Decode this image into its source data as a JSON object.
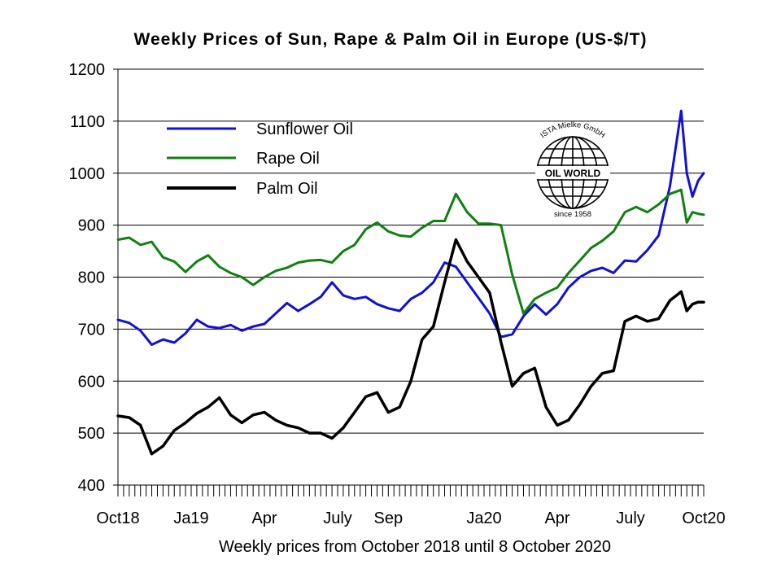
{
  "chart_data": {
    "type": "line",
    "title": "Weekly Prices of Sun, Rape & Palm Oil in Europe (US-$/T)",
    "xlabel": "Weekly prices from October 2018 until 8 October 2020",
    "ylabel": "",
    "ylim": [
      400,
      1200
    ],
    "yticks": [
      400,
      500,
      600,
      700,
      800,
      900,
      1000,
      1100,
      1200
    ],
    "x_tick_labels": [
      {
        "label": "Oct18",
        "week": 0
      },
      {
        "label": "Ja19",
        "week": 13
      },
      {
        "label": "Apr",
        "week": 26
      },
      {
        "label": "July",
        "week": 39
      },
      {
        "label": "Sep",
        "week": 48
      },
      {
        "label": "Ja20",
        "week": 65
      },
      {
        "label": "Apr",
        "week": 78
      },
      {
        "label": "July",
        "week": 91
      },
      {
        "label": "Oct20",
        "week": 104
      }
    ],
    "grid": "horizontal",
    "legend_position": "top-left",
    "x_weeks": [
      0,
      2,
      4,
      6,
      8,
      10,
      12,
      14,
      16,
      18,
      20,
      22,
      24,
      26,
      28,
      30,
      32,
      34,
      36,
      38,
      40,
      42,
      44,
      46,
      48,
      50,
      52,
      54,
      56,
      58,
      60,
      62,
      64,
      66,
      68,
      70,
      72,
      74,
      76,
      78,
      80,
      82,
      84,
      86,
      88,
      90,
      92,
      94,
      96,
      98,
      100,
      101,
      102,
      103,
      104
    ],
    "series": [
      {
        "name": "Sunflower Oil",
        "color": "#1010d8",
        "values": [
          718,
          712,
          697,
          670,
          680,
          674,
          692,
          718,
          705,
          702,
          708,
          697,
          705,
          710,
          730,
          750,
          735,
          748,
          762,
          790,
          765,
          758,
          762,
          748,
          740,
          735,
          758,
          770,
          790,
          828,
          820,
          790,
          760,
          730,
          685,
          690,
          725,
          748,
          728,
          748,
          780,
          800,
          812,
          818,
          808,
          832,
          830,
          852,
          880,
          975,
          1120,
          1000,
          955,
          985,
          1000
        ]
      },
      {
        "name": "Rape Oil",
        "color": "#108010",
        "values": [
          872,
          876,
          862,
          868,
          838,
          830,
          810,
          830,
          842,
          820,
          808,
          800,
          785,
          800,
          812,
          818,
          828,
          832,
          833,
          828,
          850,
          862,
          892,
          905,
          888,
          880,
          878,
          895,
          908,
          908,
          960,
          925,
          903,
          903,
          900,
          805,
          730,
          758,
          770,
          780,
          808,
          832,
          856,
          870,
          888,
          925,
          935,
          925,
          940,
          960,
          968,
          905,
          925,
          922,
          920
        ]
      },
      {
        "name": "Palm Oil",
        "color": "#000000",
        "values": [
          533,
          530,
          515,
          460,
          475,
          505,
          520,
          538,
          550,
          568,
          535,
          520,
          535,
          540,
          525,
          515,
          510,
          500,
          500,
          490,
          510,
          540,
          570,
          578,
          540,
          550,
          600,
          680,
          705,
          790,
          872,
          830,
          800,
          770,
          675,
          590,
          615,
          625,
          550,
          515,
          525,
          555,
          590,
          615,
          620,
          715,
          725,
          715,
          720,
          755,
          772,
          735,
          748,
          752,
          752
        ]
      }
    ]
  },
  "legend": {
    "items": [
      "Sunflower Oil",
      "Rape Oil",
      "Palm Oil"
    ]
  },
  "logo": {
    "top_text": "ISTA Mielke GmbH",
    "center_text": "OIL WORLD",
    "bottom_text": "since 1958"
  }
}
